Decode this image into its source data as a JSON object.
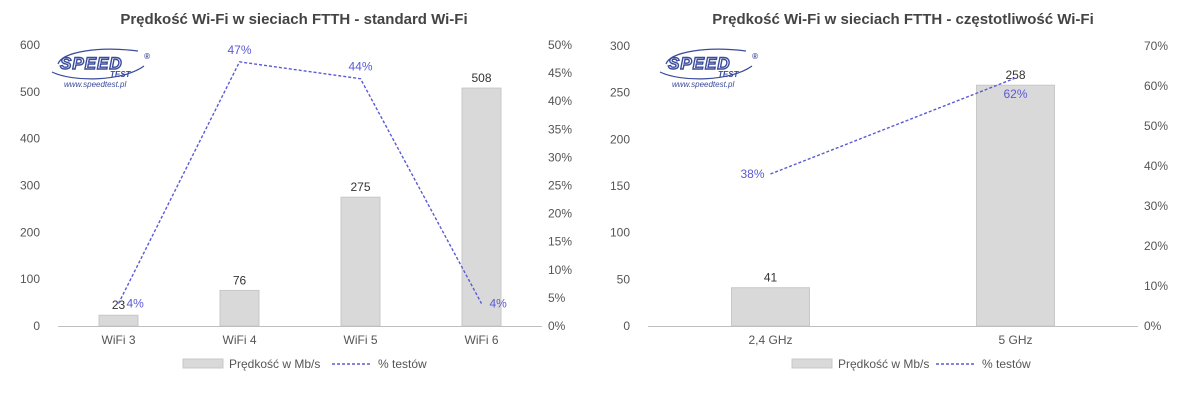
{
  "colors": {
    "bar_fill": "#d9d9d9",
    "bar_stroke": "#c8c8c8",
    "line": "#5a5ad6",
    "axis": "#bfbfbf",
    "logo": "#3a4b9c"
  },
  "logo": {
    "main": "SPEED",
    "sub": "TEST",
    "mark": "®",
    "url": "www.speedtest.pl"
  },
  "chart_data": [
    {
      "type": "bar",
      "title": "Prędkość Wi-Fi w sieciach FTTH - standard Wi-Fi",
      "categories": [
        "WiFi 3",
        "WiFi 4",
        "WiFi 5",
        "WiFi 6"
      ],
      "series": [
        {
          "name": "Prędkość w Mb/s",
          "type": "bar",
          "axis": "left",
          "values": [
            23,
            76,
            275,
            508
          ],
          "labels": [
            "23",
            "76",
            "275",
            "508"
          ]
        },
        {
          "name": "% testów",
          "type": "line",
          "axis": "right",
          "values": [
            4,
            47,
            44,
            4
          ],
          "labels": [
            "4%",
            "47%",
            "44%",
            "4%"
          ]
        }
      ],
      "ylim": [
        0,
        600
      ],
      "yticks": [
        0,
        100,
        200,
        300,
        400,
        500,
        600
      ],
      "y2lim": [
        0,
        50
      ],
      "y2ticks": [
        "0%",
        "5%",
        "10%",
        "15%",
        "20%",
        "25%",
        "30%",
        "35%",
        "40%",
        "45%",
        "50%"
      ],
      "legend": "bottom",
      "grid": false
    },
    {
      "type": "bar",
      "title": "Prędkość Wi-Fi w sieciach FTTH - częstotliwość Wi-Fi",
      "categories": [
        "2,4 GHz",
        "5 GHz"
      ],
      "series": [
        {
          "name": "Prędkość w Mb/s",
          "type": "bar",
          "axis": "left",
          "values": [
            41,
            258
          ],
          "labels": [
            "41",
            "258"
          ]
        },
        {
          "name": "% testów",
          "type": "line",
          "axis": "right",
          "values": [
            38,
            62
          ],
          "labels": [
            "38%",
            "62%"
          ]
        }
      ],
      "ylim": [
        0,
        300
      ],
      "yticks": [
        0,
        50,
        100,
        150,
        200,
        250,
        300
      ],
      "y2lim": [
        0,
        70
      ],
      "y2ticks": [
        "0%",
        "10%",
        "20%",
        "30%",
        "40%",
        "50%",
        "60%",
        "70%"
      ],
      "legend": "bottom",
      "grid": false
    }
  ]
}
